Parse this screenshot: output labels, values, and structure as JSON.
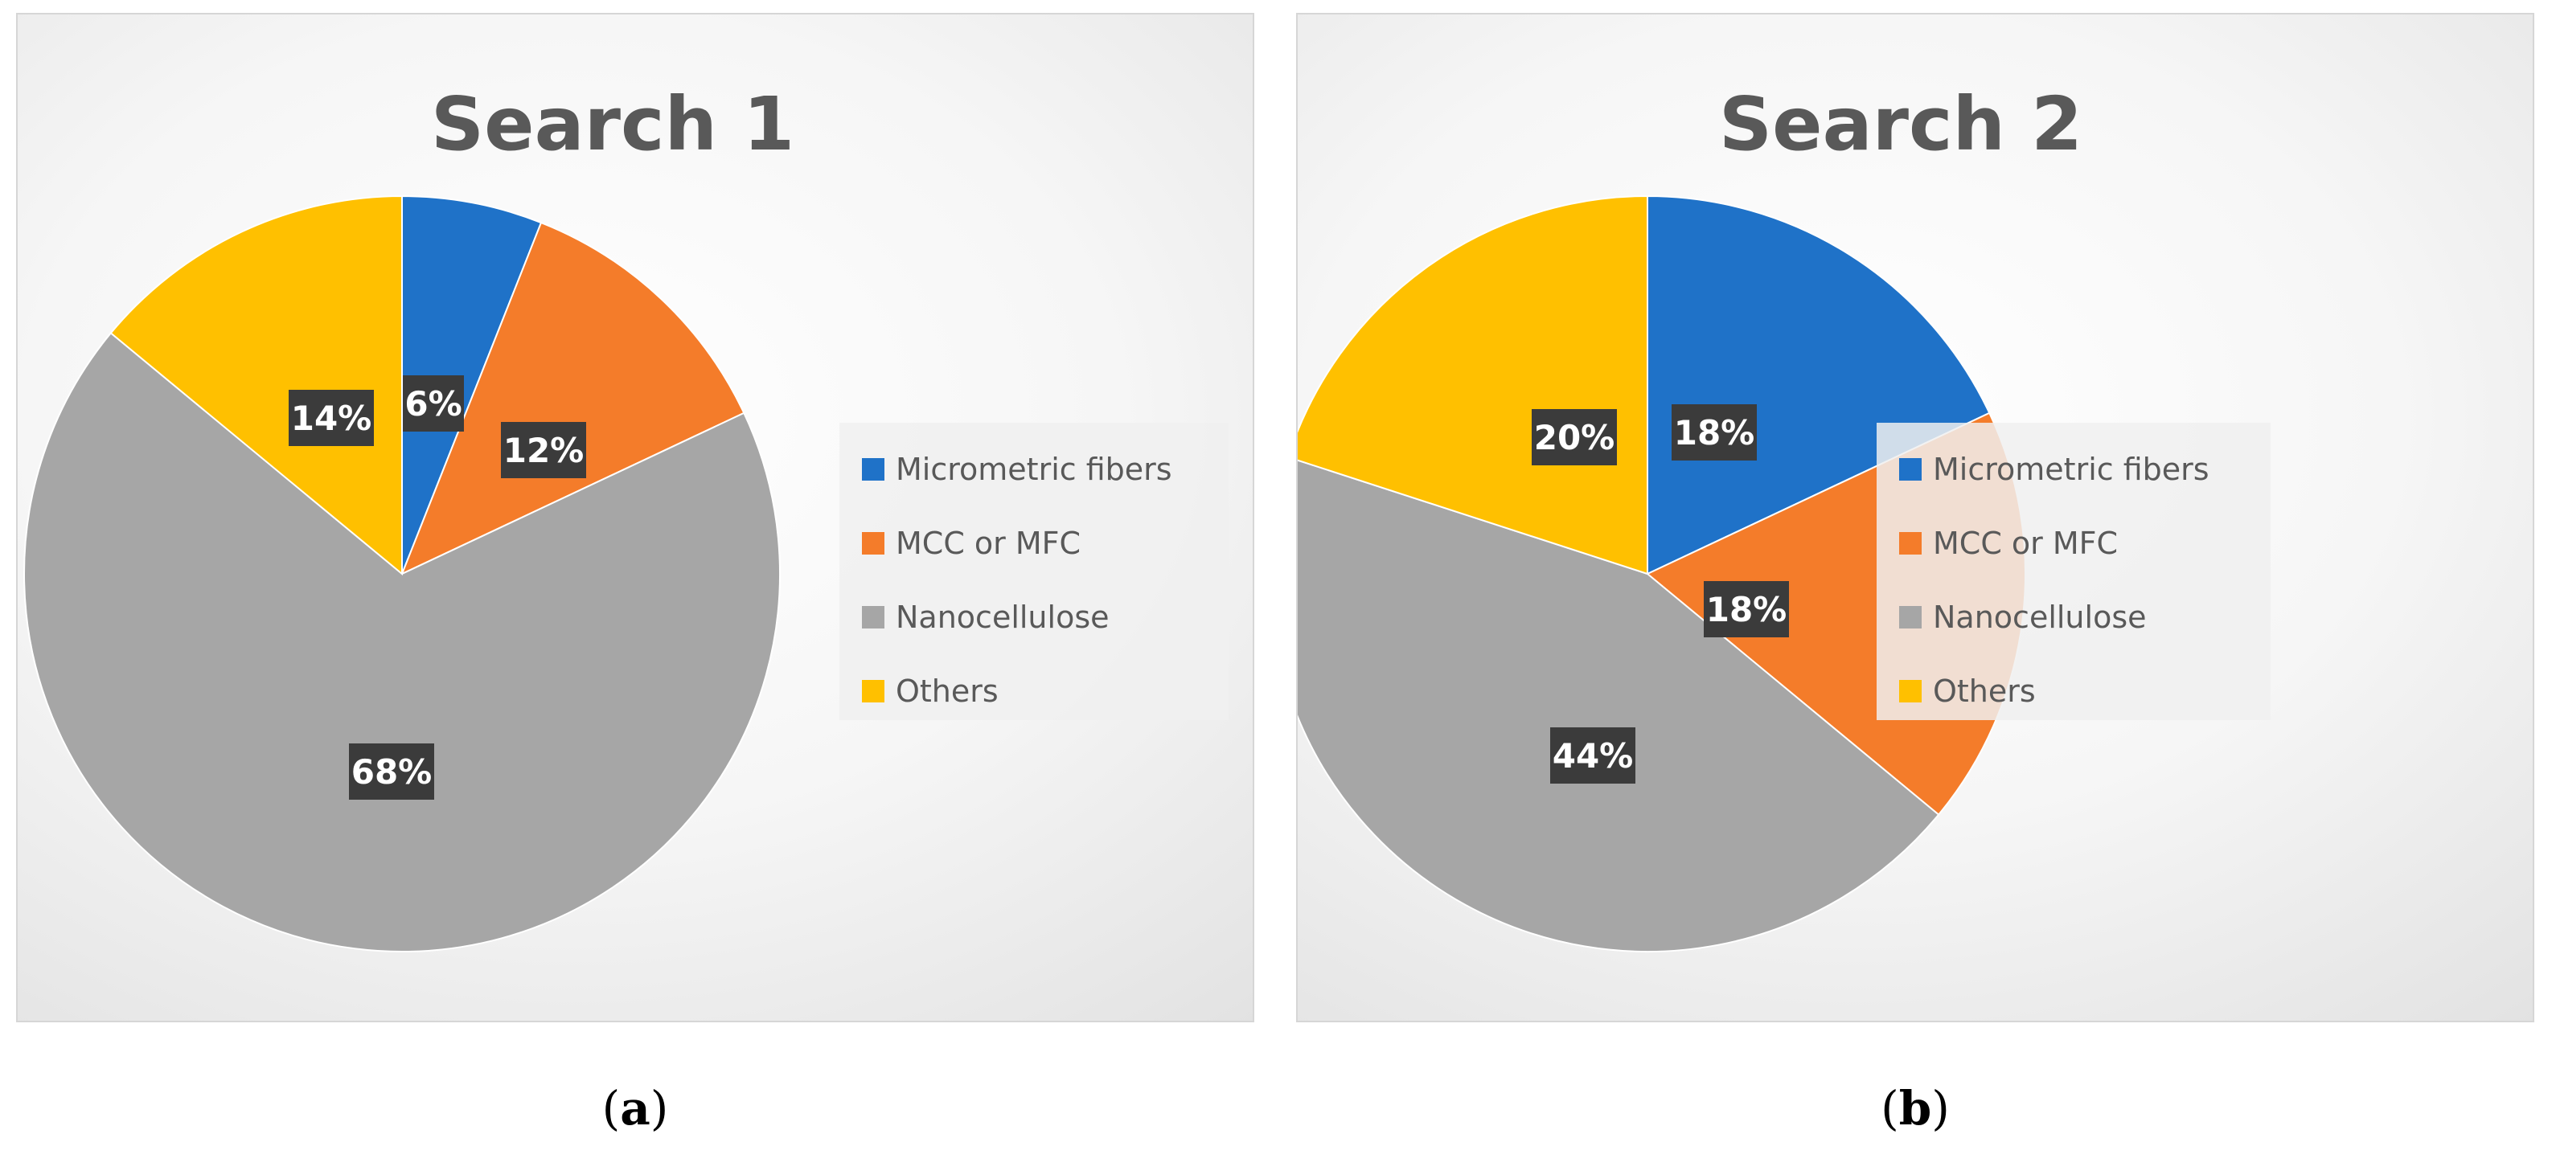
{
  "chart_data": [
    {
      "type": "pie",
      "title": "Search 1",
      "categories": [
        "Micrometric fibers",
        "MCC or MFC",
        "Nanocellulose",
        "Others"
      ],
      "values": [
        6,
        12,
        68,
        14
      ],
      "data_labels": [
        "6%",
        "12%",
        "68%",
        "14%"
      ],
      "colors": [
        "#1f72c8",
        "#f47c2a",
        "#a6a6a6",
        "#ffc000"
      ],
      "legend_position": "right",
      "start_angle": "12 o'clock, clockwise"
    },
    {
      "type": "pie",
      "title": "Search 2",
      "categories": [
        "Micrometric fibers",
        "MCC or MFC",
        "Nanocellulose",
        "Others"
      ],
      "values": [
        18,
        18,
        44,
        20
      ],
      "data_labels": [
        "18%",
        "18%",
        "44%",
        "20%"
      ],
      "colors": [
        "#1f72c8",
        "#f47c2a",
        "#a6a6a6",
        "#ffc000"
      ],
      "legend_position": "right",
      "start_angle": "12 o'clock, clockwise"
    }
  ],
  "captions": [
    "(a)",
    "(b)"
  ],
  "caption_letters": [
    "a",
    "b"
  ],
  "colors": {
    "label_box": "#3b3b3b",
    "title": "#595959",
    "legend_bg": "#f0f0f0"
  }
}
